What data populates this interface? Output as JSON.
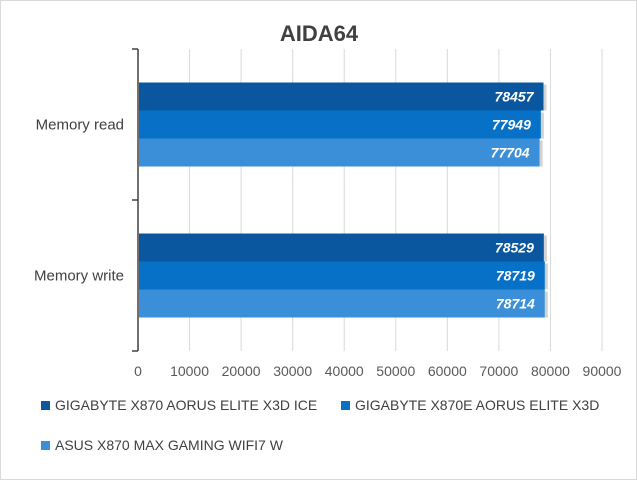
{
  "chart_data": {
    "type": "bar",
    "orientation": "horizontal",
    "title": "AIDA64",
    "categories": [
      "Memory read",
      "Memory write"
    ],
    "series": [
      {
        "name": "GIGABYTE X870 AORUS ELITE X3D ICE",
        "color": "#0a57a0",
        "values": [
          78457,
          78529
        ]
      },
      {
        "name": "GIGABYTE X870E AORUS ELITE X3D",
        "color": "#0771c8",
        "values": [
          77949,
          78719
        ]
      },
      {
        "name": "ASUS X870 MAX GAMING WIFI7 W",
        "color": "#3a8fd8",
        "values": [
          77704,
          78714
        ]
      }
    ],
    "xlim": [
      0,
      90000
    ],
    "xticks": [
      "0",
      "10000",
      "20000",
      "30000",
      "40000",
      "50000",
      "60000",
      "70000",
      "80000",
      "90000"
    ],
    "grid": true,
    "legend_position": "bottom"
  }
}
